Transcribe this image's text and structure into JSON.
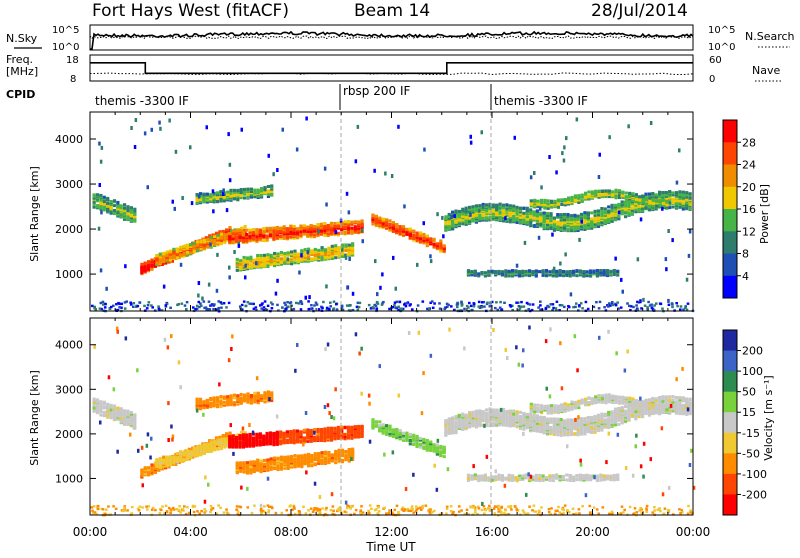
{
  "header": {
    "station": "Fort Hays West (fitACF)",
    "beam": "Beam 14",
    "date": "28/Jul/2014"
  },
  "noise_panel": {
    "left_label": "N.Sky",
    "right_label": "N.Search",
    "left_ticks": [
      "10^5",
      "10^0"
    ],
    "right_ticks": [
      "10^5",
      "10^0"
    ]
  },
  "freq_panel": {
    "left_label_1": "Freq.",
    "left_label_2": "[MHz]",
    "right_label": "Nave",
    "left_ticks": [
      "18",
      "8"
    ],
    "right_ticks": [
      "60",
      "0"
    ],
    "freq_steps": [
      {
        "t0": 0,
        "t1": 2.2,
        "value": 16
      },
      {
        "t0": 2.2,
        "t1": 14.2,
        "value": 10.5
      },
      {
        "t0": 14.2,
        "t1": 24,
        "value": 16
      }
    ]
  },
  "cpid": {
    "label": "CPID",
    "segments": [
      {
        "start": 0,
        "name": "themis -3300 IF"
      },
      {
        "start": 10,
        "name": "rbsp 200 IF"
      },
      {
        "start": 16,
        "name": "themis -3300 IF"
      }
    ]
  },
  "chart_data": [
    {
      "type": "heatmap",
      "quantity": "power",
      "ylabel": "Slant Range [km]",
      "ylim": [
        180,
        4600
      ],
      "yticks": [
        1000,
        2000,
        3000,
        4000
      ],
      "colorbar_label": "Power [dB]",
      "colorbar_ticks": [
        "4",
        "8",
        "12",
        "16",
        "20",
        "24",
        "28"
      ],
      "colorbar_range": [
        0,
        30
      ],
      "colors": [
        "#0000ff",
        "#1e4fb4",
        "#2d7d6e",
        "#46b446",
        "#f0c800",
        "#f08c00",
        "#ff4600",
        "#ff0000"
      ]
    },
    {
      "type": "heatmap",
      "quantity": "velocity",
      "ylabel": "Slant Range [km]",
      "ylim": [
        180,
        4600
      ],
      "yticks": [
        1000,
        2000,
        3000,
        4000
      ],
      "colorbar_label": "Velocity [m s⁻¹]",
      "colorbar_ticks": [
        "200",
        "100",
        "50",
        "15",
        "-15",
        "-50",
        "-100",
        "-200"
      ],
      "colors": [
        "#1e28a0",
        "#3c64c8",
        "#2d8c50",
        "#78d23c",
        "#c8c8c8",
        "#f0c832",
        "#ff8c00",
        "#ff4600",
        "#ff0000"
      ]
    }
  ],
  "xaxis": {
    "label": "Time UT",
    "ticks": [
      "00:00",
      "04:00",
      "08:00",
      "12:00",
      "16:00",
      "20:00",
      "00:00"
    ],
    "range_hours": [
      0,
      24
    ]
  }
}
